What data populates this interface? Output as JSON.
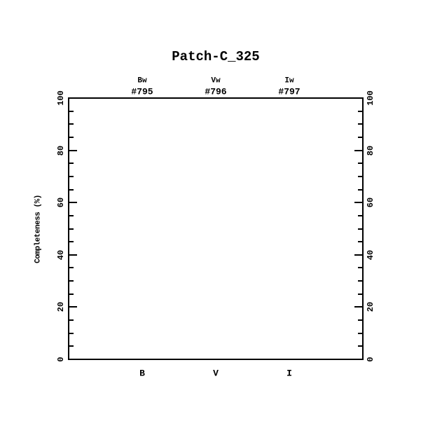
{
  "page": {
    "background_color": "#ffffff",
    "foreground_color": "#000000"
  },
  "chart_data": {
    "type": "line",
    "title": "Patch-C_325",
    "ylabel": "Completeness (%)",
    "xlabel": "",
    "ylim": [
      0,
      100
    ],
    "y_major_ticks": [
      0,
      20,
      40,
      60,
      80,
      100
    ],
    "y_minor_tick_step": 5,
    "tick_labels_both_sides": true,
    "grid": false,
    "x_categories": [
      "B",
      "V",
      "I"
    ],
    "top_axis_columns": [
      {
        "filter": "Bw",
        "number": "#795"
      },
      {
        "filter": "Vw",
        "number": "#796"
      },
      {
        "filter": "Iw",
        "number": "#797"
      }
    ],
    "series": []
  }
}
